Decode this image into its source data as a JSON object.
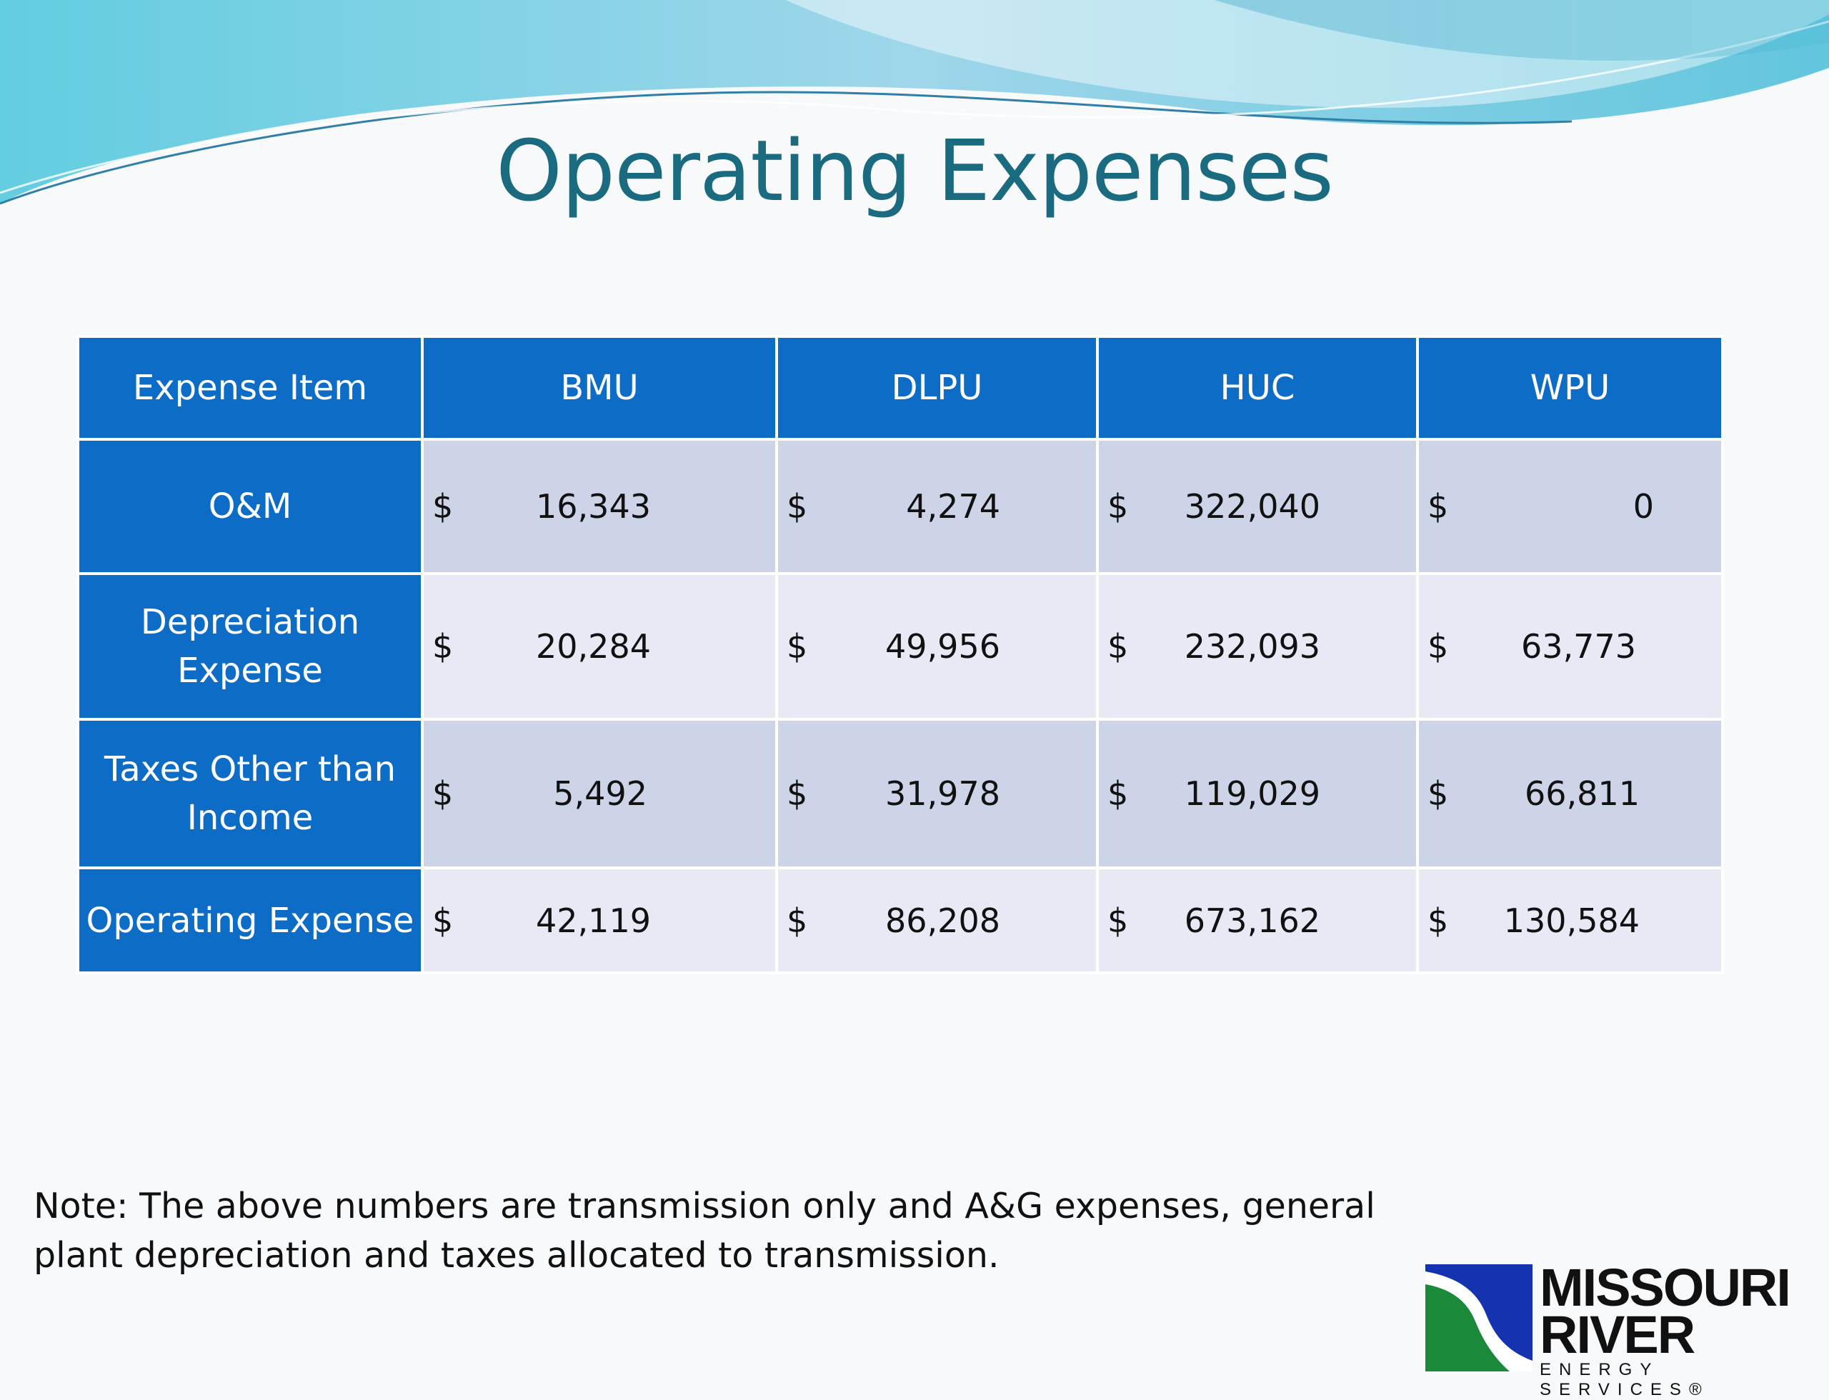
{
  "slide": {
    "title": "Operating Expenses",
    "note": "Note: The above numbers are transmission only and A&G expenses, general plant depreciation and taxes allocated to transmission."
  },
  "table": {
    "header": {
      "item": "Expense Item",
      "columns": [
        "BMU",
        "DLPU",
        "HUC",
        "WPU"
      ]
    },
    "currency_symbol": "$",
    "rows": [
      {
        "label": "O&M",
        "values": [
          "16,343",
          "4,274",
          "322,040",
          "0"
        ]
      },
      {
        "label": "Depreciation Expense",
        "values": [
          "20,284",
          "49,956",
          "232,093",
          "63,773"
        ]
      },
      {
        "label": "Taxes Other than Income",
        "values": [
          "5,492",
          "31,978",
          "119,029",
          "66,811"
        ]
      },
      {
        "label": "Operating Expense",
        "values": [
          "42,119",
          "86,208",
          "673,162",
          "130,584"
        ]
      }
    ]
  },
  "logo": {
    "line1": "MISSOURI",
    "line2": "RIVER",
    "line3": "ENERGY SERVICES®"
  },
  "colors": {
    "header_blue": "#0d6cc5",
    "title_teal": "#1a6a80",
    "row_dark": "#cdd4e8",
    "row_light": "#e7eaf5"
  }
}
